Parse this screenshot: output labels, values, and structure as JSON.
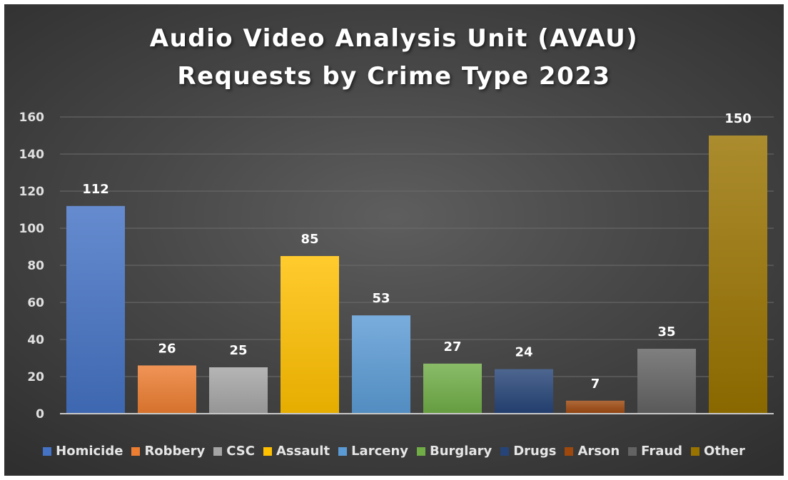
{
  "chart_data": {
    "type": "bar",
    "title_lines": [
      "Audio Video Analysis Unit (AVAU)",
      "Requests by Crime Type 2023"
    ],
    "categories": [
      "Homicide",
      "Robbery",
      "CSC",
      "Assault",
      "Larceny",
      "Burglary",
      "Drugs",
      "Arson",
      "Fraud",
      "Other"
    ],
    "values": [
      112,
      26,
      25,
      85,
      53,
      27,
      24,
      7,
      35,
      150
    ],
    "colors": [
      "#4472c4",
      "#ed7d31",
      "#a5a5a5",
      "#ffc000",
      "#5b9bd5",
      "#70ad47",
      "#264478",
      "#9e480e",
      "#636363",
      "#997300"
    ],
    "ylim": [
      0,
      160
    ],
    "yticks": [
      "0",
      "20",
      "40",
      "60",
      "80",
      "100",
      "120",
      "140",
      "160"
    ],
    "grid": true,
    "legend_position": "bottom",
    "data_labels": true
  }
}
